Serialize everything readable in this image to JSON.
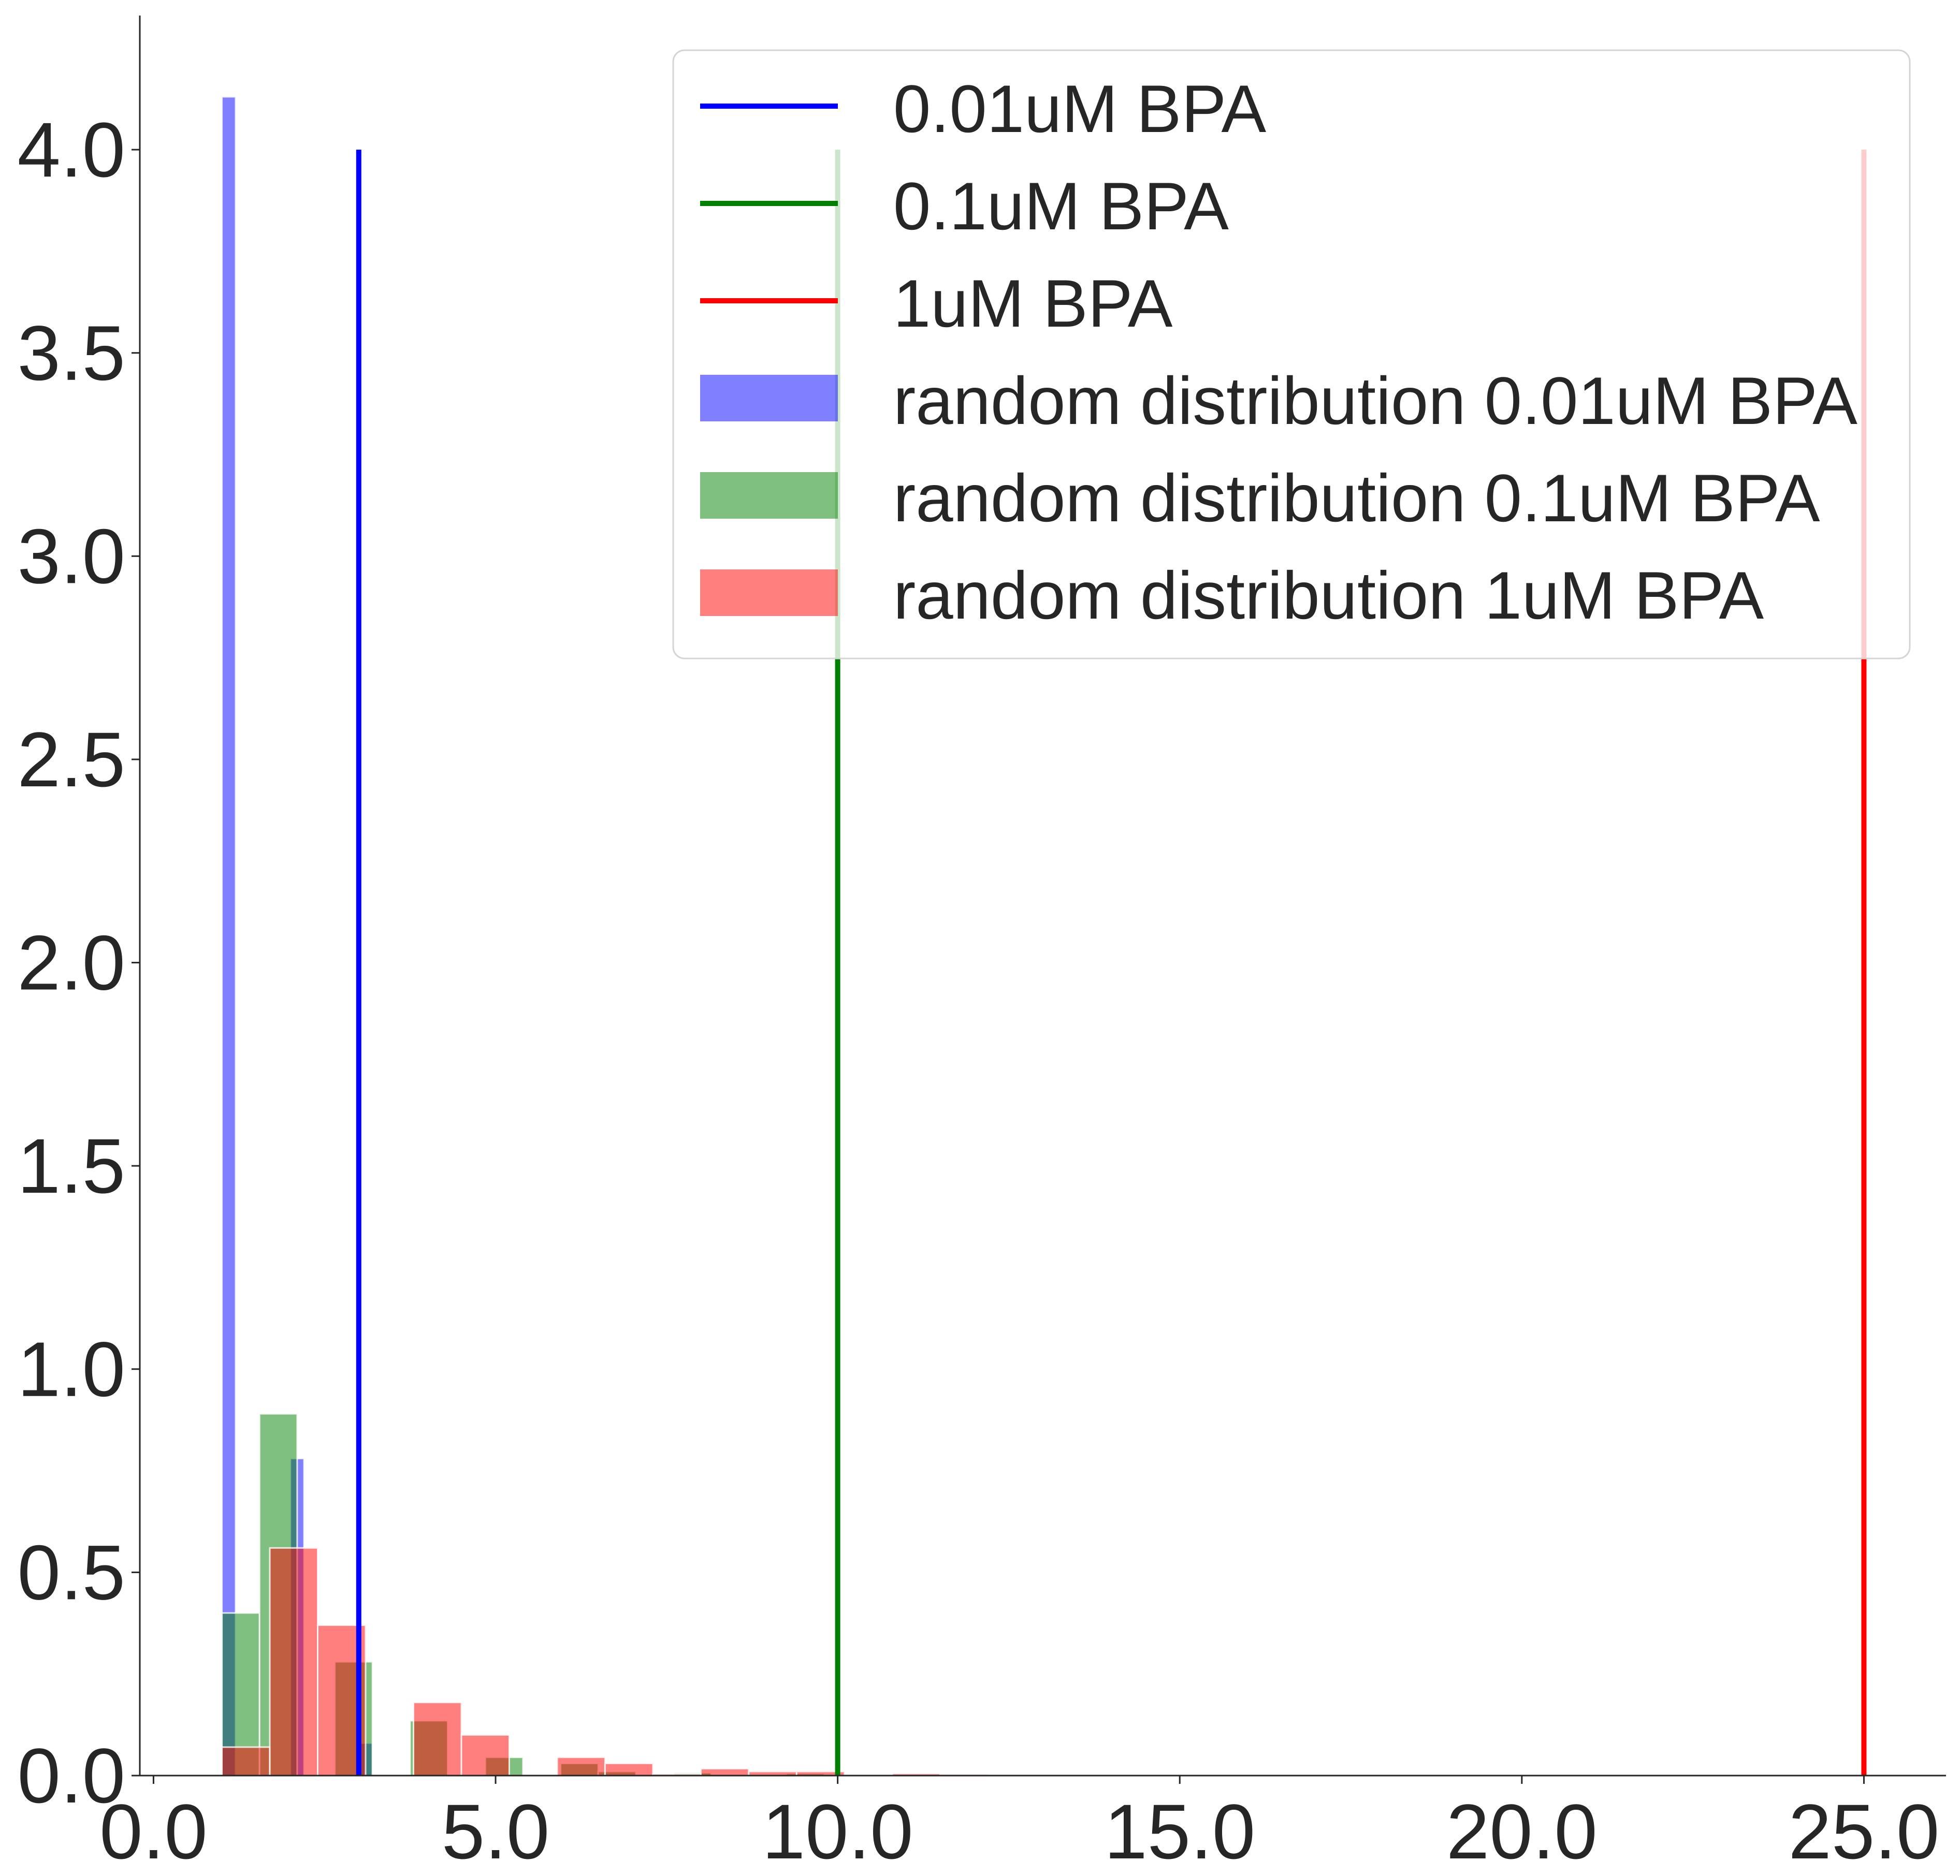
{
  "chart_data": {
    "type": "bar",
    "title": "",
    "xlabel": "",
    "ylabel": "",
    "xlim": [
      -0.2,
      26.2
    ],
    "ylim": [
      0,
      4.33
    ],
    "xticks": [
      0,
      5,
      10,
      15,
      20,
      25
    ],
    "xtick_labels": [
      "0.0",
      "5.0",
      "10.0",
      "15.0",
      "20.0",
      "25.0"
    ],
    "yticks": [
      0,
      0.5,
      1,
      1.5,
      2,
      2.5,
      3,
      3.5,
      4
    ],
    "ytick_labels": [
      "0.0",
      "0.5",
      "1.0",
      "1.5",
      "2.0",
      "2.5",
      "3.0",
      "3.5",
      "4.0"
    ],
    "grid": false,
    "legend_position": "top-right",
    "lines": [
      {
        "name": "0.01uM BPA",
        "x": 3.0,
        "y0": 0,
        "y1": 4.0,
        "color": "#0000ff"
      },
      {
        "name": "0.1uM BPA",
        "x": 10.0,
        "y0": 0,
        "y1": 4.0,
        "color": "#008000"
      },
      {
        "name": "1uM BPA",
        "x": 25.0,
        "y0": 0,
        "y1": 4.0,
        "color": "#ff0000"
      }
    ],
    "histograms": [
      {
        "name": "random distribution 0.01uM BPA",
        "color": "#0000ff",
        "opacity": 0.5,
        "bins": [
          {
            "x0": 1.0,
            "x1": 1.2,
            "value": 4.13
          },
          {
            "x0": 2.0,
            "x1": 2.2,
            "value": 0.78
          },
          {
            "x0": 3.0,
            "x1": 3.2,
            "value": 0.08
          }
        ]
      },
      {
        "name": "random distribution 0.1uM BPA",
        "color": "#008000",
        "opacity": 0.5,
        "bins": [
          {
            "x0": 1.0,
            "x1": 1.55,
            "value": 0.4
          },
          {
            "x0": 1.55,
            "x1": 2.1,
            "value": 0.89
          },
          {
            "x0": 2.65,
            "x1": 3.2,
            "value": 0.28
          },
          {
            "x0": 3.75,
            "x1": 4.3,
            "value": 0.135
          },
          {
            "x0": 4.85,
            "x1": 5.4,
            "value": 0.045
          },
          {
            "x0": 5.95,
            "x1": 6.5,
            "value": 0.03
          },
          {
            "x0": 6.5,
            "x1": 7.05,
            "value": 0.01
          },
          {
            "x0": 7.6,
            "x1": 8.15,
            "value": 0.007
          },
          {
            "x0": 9.25,
            "x1": 9.8,
            "value": 0.005
          }
        ]
      },
      {
        "name": "random distribution 1uM BPA",
        "color": "#ff0000",
        "opacity": 0.5,
        "bins": [
          {
            "x0": 1.0,
            "x1": 1.7,
            "value": 0.07
          },
          {
            "x0": 1.7,
            "x1": 2.4,
            "value": 0.56
          },
          {
            "x0": 2.4,
            "x1": 3.1,
            "value": 0.37
          },
          {
            "x0": 3.8,
            "x1": 4.5,
            "value": 0.18
          },
          {
            "x0": 4.5,
            "x1": 5.2,
            "value": 0.1
          },
          {
            "x0": 5.9,
            "x1": 6.6,
            "value": 0.045
          },
          {
            "x0": 6.6,
            "x1": 7.3,
            "value": 0.03
          },
          {
            "x0": 7.3,
            "x1": 8.0,
            "value": 0.004
          },
          {
            "x0": 8.0,
            "x1": 8.7,
            "value": 0.017
          },
          {
            "x0": 8.7,
            "x1": 9.4,
            "value": 0.01
          },
          {
            "x0": 9.4,
            "x1": 10.1,
            "value": 0.01
          },
          {
            "x0": 10.8,
            "x1": 11.5,
            "value": 0.005
          },
          {
            "x0": 11.5,
            "x1": 12.2,
            "value": 0.003
          },
          {
            "x0": 13.6,
            "x1": 14.3,
            "value": 0.002
          }
        ]
      }
    ]
  }
}
